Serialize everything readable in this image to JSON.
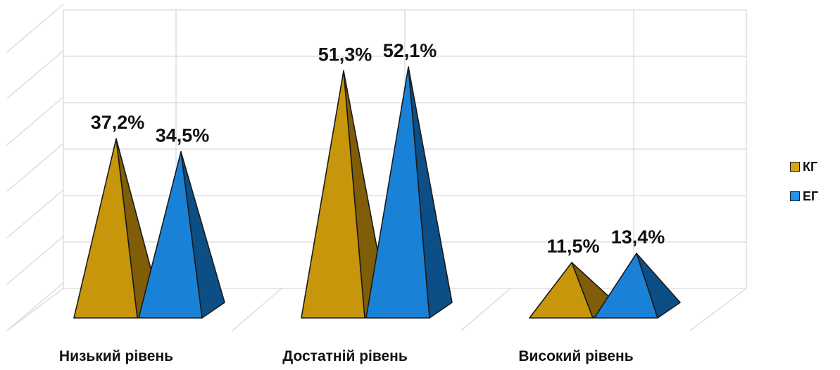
{
  "chart_data": {
    "type": "bar",
    "categories": [
      "Низький рівень",
      "Достатній рівень",
      "Високий рівень"
    ],
    "series": [
      {
        "name": "КГ",
        "values": [
          37.2,
          51.3,
          11.5
        ],
        "labels": [
          "37,2%",
          "51,3%",
          "11,5%"
        ]
      },
      {
        "name": "ЕГ",
        "values": [
          34.5,
          52.1,
          13.4
        ],
        "labels": [
          "34,5%",
          "52,1%",
          "13,4%"
        ]
      }
    ],
    "ylim": [
      0,
      60
    ],
    "grid": true,
    "legend_position": "right",
    "colors": {
      "КГ": {
        "front": "#C8960A",
        "side": "#7F5E07",
        "light": "#D9A514"
      },
      "ЕГ": {
        "front": "#1A82D6",
        "side": "#0C4F86",
        "light": "#2492E6"
      }
    },
    "gridline_color": "#d9d9d9",
    "outline_color": "#1a1a1a"
  }
}
